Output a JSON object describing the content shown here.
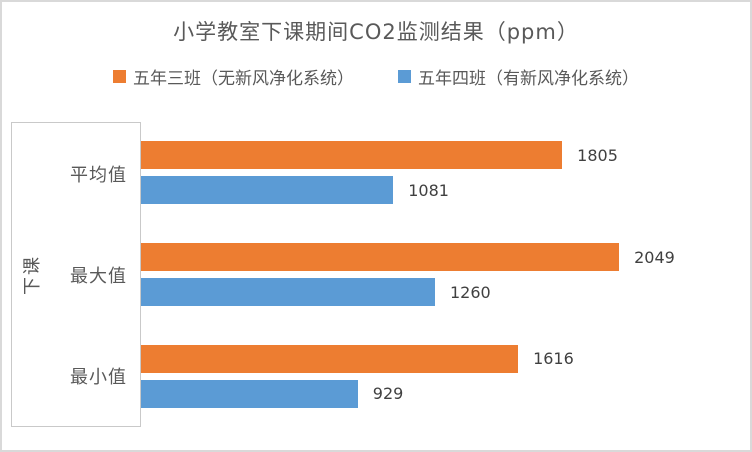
{
  "title": "小学教室下课期间CO2监测结果（ppm）",
  "axis_title": "下课",
  "colors": {
    "series_no_purifier": "#ED7D31",
    "series_with_purifier": "#5B9BD5",
    "title_text": "#595959",
    "axis_text": "#595959",
    "value_text": "#404040",
    "axis_line": "#C9C9C9",
    "frame_border": "#D9D9D9"
  },
  "legend": [
    {
      "label": "五年三班（无新风净化系统）",
      "color": "#ED7D31"
    },
    {
      "label": "五年四班（有新风净化系统）",
      "color": "#5B9BD5"
    }
  ],
  "chart_data": {
    "type": "bar",
    "orientation": "horizontal",
    "title": "小学教室下课期间CO2监测结果（ppm）",
    "xlabel": "",
    "ylabel": "下课",
    "categories": [
      "平均值",
      "最大值",
      "最小值"
    ],
    "series": [
      {
        "name": "五年三班（无新风净化系统）",
        "color": "#ED7D31",
        "values": [
          1805,
          2049,
          1616
        ]
      },
      {
        "name": "五年四班（有新风净化系统）",
        "color": "#5B9BD5",
        "values": [
          1081,
          1260,
          929
        ]
      }
    ],
    "data_labels": [
      [
        1805,
        2049,
        1616
      ],
      [
        1081,
        1260,
        929
      ]
    ],
    "xlim": [
      0,
      2400
    ],
    "grid": false,
    "legend_position": "top",
    "value_labels": true
  }
}
